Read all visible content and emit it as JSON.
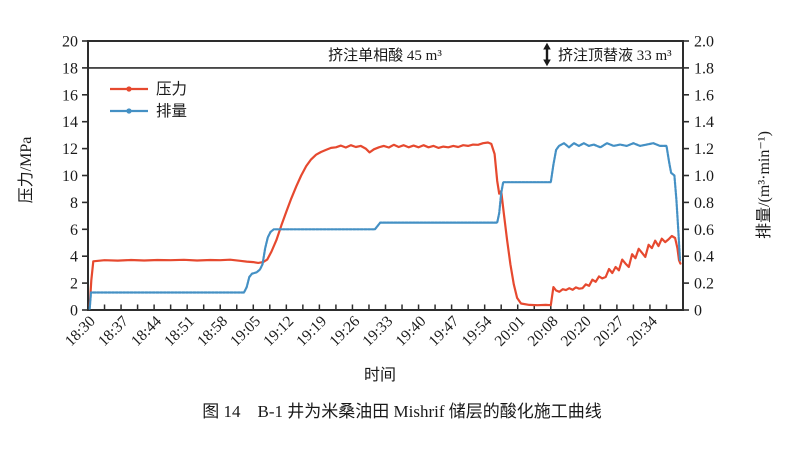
{
  "figure": {
    "caption": "图 14　B-1 井为米桑油田 Mishrif 储层的酸化施工曲线"
  },
  "colors": {
    "pressure_line": "#e6492f",
    "flow_line": "#4490c4",
    "frame": "#2d2d2d",
    "text": "#1a1a1a",
    "background": "#ffffff"
  },
  "chart_data": {
    "type": "line",
    "title": "",
    "x_axis": {
      "label": "时间",
      "tick_labels": [
        "18:30",
        "18:37",
        "18:44",
        "18:51",
        "18:58",
        "19:05",
        "19:12",
        "19:19",
        "19:26",
        "19:33",
        "19:40",
        "19:47",
        "19:54",
        "20:01",
        "20:08",
        "20:20",
        "20:27",
        "20:34"
      ],
      "tick_label_rotation_deg": -45,
      "x_unit": "major tick index, evenly spaced"
    },
    "y_axis_left": {
      "label": "压力/MPa",
      "min": 0,
      "max": 20,
      "tick_step": 2,
      "tick_labels": [
        "0",
        "2",
        "4",
        "6",
        "8",
        "10",
        "12",
        "14",
        "16",
        "18",
        "20"
      ]
    },
    "y_axis_right": {
      "label": "排量/(m³·min⁻¹)",
      "min": 0,
      "max": 2.0,
      "tick_step": 0.2,
      "tick_labels": [
        "0",
        "0.2",
        "0.4",
        "0.6",
        "0.8",
        "1.0",
        "1.2",
        "1.4",
        "1.6",
        "1.8",
        "2.0"
      ]
    },
    "grid": "off",
    "stage_band": {
      "separator_value_left_axis": 18,
      "annotations": [
        {
          "text": "挤注单相酸 45 m³",
          "align": "center-left-section"
        },
        {
          "text": "挤注顶替液 33 m³",
          "align": "right-section-after-double-arrow"
        }
      ]
    },
    "legend": {
      "position": "upper-left-inside",
      "items": [
        "压力",
        "排量"
      ]
    },
    "series": [
      {
        "name": "压力",
        "axis": "left",
        "unit": "MPa",
        "color": "#e6492f",
        "points": [
          [
            0.05,
            0.3
          ],
          [
            0.1,
            2.2
          ],
          [
            0.16,
            3.62
          ],
          [
            0.5,
            3.7
          ],
          [
            0.9,
            3.67
          ],
          [
            1.3,
            3.72
          ],
          [
            1.7,
            3.68
          ],
          [
            2.1,
            3.72
          ],
          [
            2.5,
            3.7
          ],
          [
            2.9,
            3.73
          ],
          [
            3.3,
            3.68
          ],
          [
            3.7,
            3.72
          ],
          [
            4.0,
            3.7
          ],
          [
            4.3,
            3.74
          ],
          [
            4.6,
            3.66
          ],
          [
            4.8,
            3.6
          ],
          [
            5.0,
            3.56
          ],
          [
            5.15,
            3.5
          ],
          [
            5.3,
            3.56
          ],
          [
            5.42,
            3.75
          ],
          [
            5.55,
            4.35
          ],
          [
            5.7,
            5.2
          ],
          [
            5.85,
            6.3
          ],
          [
            6.0,
            7.3
          ],
          [
            6.15,
            8.3
          ],
          [
            6.3,
            9.2
          ],
          [
            6.45,
            10.0
          ],
          [
            6.6,
            10.7
          ],
          [
            6.75,
            11.2
          ],
          [
            6.9,
            11.55
          ],
          [
            7.05,
            11.75
          ],
          [
            7.2,
            11.9
          ],
          [
            7.35,
            12.05
          ],
          [
            7.5,
            12.1
          ],
          [
            7.65,
            12.22
          ],
          [
            7.8,
            12.08
          ],
          [
            7.95,
            12.25
          ],
          [
            8.1,
            12.12
          ],
          [
            8.25,
            12.2
          ],
          [
            8.4,
            12.0
          ],
          [
            8.52,
            11.72
          ],
          [
            8.65,
            11.95
          ],
          [
            8.8,
            12.1
          ],
          [
            8.95,
            12.2
          ],
          [
            9.1,
            12.08
          ],
          [
            9.25,
            12.28
          ],
          [
            9.4,
            12.12
          ],
          [
            9.55,
            12.25
          ],
          [
            9.7,
            12.1
          ],
          [
            9.85,
            12.22
          ],
          [
            10.0,
            12.1
          ],
          [
            10.15,
            12.25
          ],
          [
            10.3,
            12.1
          ],
          [
            10.45,
            12.2
          ],
          [
            10.6,
            12.05
          ],
          [
            10.75,
            12.15
          ],
          [
            10.9,
            12.1
          ],
          [
            11.05,
            12.2
          ],
          [
            11.2,
            12.12
          ],
          [
            11.35,
            12.25
          ],
          [
            11.5,
            12.2
          ],
          [
            11.65,
            12.3
          ],
          [
            11.8,
            12.28
          ],
          [
            11.95,
            12.4
          ],
          [
            12.1,
            12.45
          ],
          [
            12.2,
            12.35
          ],
          [
            12.3,
            11.6
          ],
          [
            12.38,
            9.6
          ],
          [
            12.44,
            8.65
          ],
          [
            12.5,
            8.85
          ],
          [
            12.58,
            7.2
          ],
          [
            12.68,
            5.2
          ],
          [
            12.78,
            3.4
          ],
          [
            12.88,
            1.9
          ],
          [
            12.98,
            0.9
          ],
          [
            13.1,
            0.48
          ],
          [
            13.35,
            0.38
          ],
          [
            13.6,
            0.36
          ],
          [
            13.85,
            0.38
          ],
          [
            14.0,
            0.36
          ],
          [
            14.08,
            1.7
          ],
          [
            14.16,
            1.45
          ],
          [
            14.26,
            1.35
          ],
          [
            14.36,
            1.55
          ],
          [
            14.46,
            1.48
          ],
          [
            14.56,
            1.62
          ],
          [
            14.66,
            1.5
          ],
          [
            14.76,
            1.68
          ],
          [
            14.86,
            1.58
          ],
          [
            14.96,
            1.62
          ],
          [
            15.06,
            1.9
          ],
          [
            15.16,
            1.8
          ],
          [
            15.26,
            2.25
          ],
          [
            15.36,
            2.1
          ],
          [
            15.46,
            2.5
          ],
          [
            15.56,
            2.35
          ],
          [
            15.66,
            2.45
          ],
          [
            15.76,
            3.05
          ],
          [
            15.86,
            2.75
          ],
          [
            15.96,
            3.2
          ],
          [
            16.06,
            2.95
          ],
          [
            16.16,
            3.75
          ],
          [
            16.26,
            3.45
          ],
          [
            16.36,
            3.2
          ],
          [
            16.46,
            4.15
          ],
          [
            16.56,
            3.85
          ],
          [
            16.66,
            4.55
          ],
          [
            16.76,
            4.25
          ],
          [
            16.86,
            3.95
          ],
          [
            16.96,
            4.85
          ],
          [
            17.06,
            4.6
          ],
          [
            17.16,
            5.15
          ],
          [
            17.26,
            4.75
          ],
          [
            17.36,
            5.3
          ],
          [
            17.46,
            5.05
          ],
          [
            17.56,
            5.25
          ],
          [
            17.66,
            5.5
          ],
          [
            17.76,
            5.35
          ],
          [
            17.83,
            4.6
          ],
          [
            17.88,
            3.7
          ],
          [
            17.92,
            3.45
          ]
        ]
      },
      {
        "name": "排量",
        "axis": "right",
        "unit": "m³·min⁻¹",
        "color": "#4490c4",
        "points": [
          [
            0.05,
            0.01
          ],
          [
            0.09,
            0.13
          ],
          [
            0.6,
            0.13
          ],
          [
            1.2,
            0.13
          ],
          [
            1.8,
            0.13
          ],
          [
            2.4,
            0.13
          ],
          [
            3.0,
            0.13
          ],
          [
            3.6,
            0.13
          ],
          [
            4.2,
            0.13
          ],
          [
            4.72,
            0.13
          ],
          [
            4.8,
            0.17
          ],
          [
            4.88,
            0.245
          ],
          [
            4.96,
            0.27
          ],
          [
            5.1,
            0.28
          ],
          [
            5.2,
            0.3
          ],
          [
            5.28,
            0.34
          ],
          [
            5.36,
            0.46
          ],
          [
            5.44,
            0.54
          ],
          [
            5.52,
            0.58
          ],
          [
            5.62,
            0.6
          ],
          [
            6.2,
            0.6
          ],
          [
            6.8,
            0.6
          ],
          [
            7.4,
            0.6
          ],
          [
            8.0,
            0.6
          ],
          [
            8.68,
            0.6
          ],
          [
            8.76,
            0.625
          ],
          [
            8.84,
            0.65
          ],
          [
            9.5,
            0.65
          ],
          [
            10.2,
            0.65
          ],
          [
            11.0,
            0.65
          ],
          [
            11.8,
            0.65
          ],
          [
            12.38,
            0.65
          ],
          [
            12.44,
            0.72
          ],
          [
            12.5,
            0.87
          ],
          [
            12.56,
            0.95
          ],
          [
            13.0,
            0.95
          ],
          [
            13.5,
            0.95
          ],
          [
            14.0,
            0.95
          ],
          [
            14.08,
            1.08
          ],
          [
            14.16,
            1.19
          ],
          [
            14.25,
            1.22
          ],
          [
            14.4,
            1.24
          ],
          [
            14.55,
            1.21
          ],
          [
            14.7,
            1.24
          ],
          [
            14.85,
            1.22
          ],
          [
            15.0,
            1.24
          ],
          [
            15.15,
            1.22
          ],
          [
            15.3,
            1.23
          ],
          [
            15.5,
            1.21
          ],
          [
            15.7,
            1.24
          ],
          [
            15.9,
            1.22
          ],
          [
            16.1,
            1.23
          ],
          [
            16.3,
            1.22
          ],
          [
            16.5,
            1.24
          ],
          [
            16.7,
            1.22
          ],
          [
            16.9,
            1.23
          ],
          [
            17.1,
            1.24
          ],
          [
            17.3,
            1.22
          ],
          [
            17.5,
            1.22
          ],
          [
            17.58,
            1.1
          ],
          [
            17.64,
            1.02
          ],
          [
            17.74,
            1.0
          ],
          [
            17.8,
            0.82
          ],
          [
            17.86,
            0.58
          ],
          [
            17.91,
            0.37
          ]
        ]
      }
    ]
  }
}
